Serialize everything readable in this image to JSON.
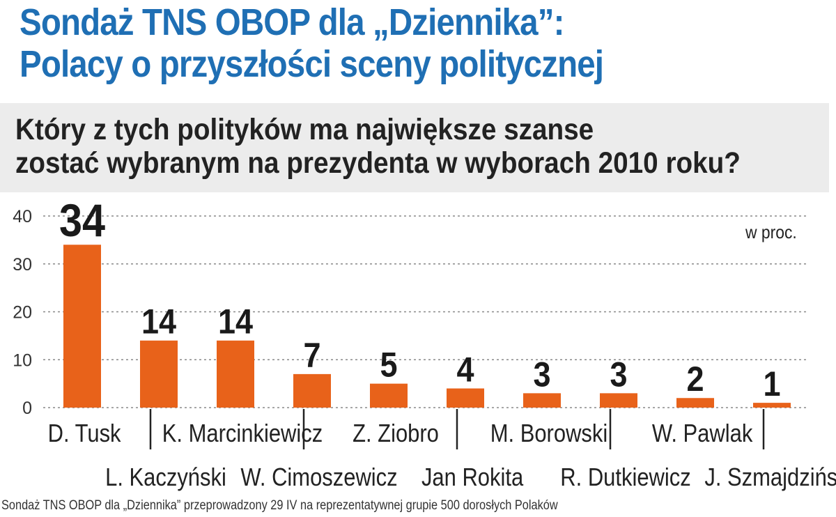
{
  "header": {
    "title_line1": "Sondaż TNS OBOP dla „Dziennika”:",
    "title_line2": "Polacy o przyszłości sceny politycznej",
    "question_line1": "Który z tych polityków ma największe szanse",
    "question_line2": "zostać wybranym na prezydenta w wyborach 2010 roku?",
    "unit": "w proc.",
    "footnote": "Sondaż TNS OBOP dla „Dziennika” przeprowadzony 29 IV na reprezentatywnej grupie 500 dorosłych Polaków"
  },
  "colors": {
    "title": "#1f6fb4",
    "bar": "#e8621a",
    "grid": "#888888"
  },
  "chart_data": {
    "type": "bar",
    "categories": [
      "D. Tusk",
      "L. Kaczyński",
      "K. Marcinkiewicz",
      "W. Cimoszewicz",
      "Z. Ziobro",
      "Jan Rokita",
      "M. Borowski",
      "R. Dutkiewicz",
      "W. Pawlak",
      "J. Szmajdziński"
    ],
    "values": [
      34,
      14,
      14,
      7,
      5,
      4,
      3,
      3,
      2,
      1
    ],
    "value_labels": [
      "34",
      "14",
      "14",
      "7",
      "5",
      "4",
      "3",
      "3",
      "2",
      "1"
    ],
    "yticks": [
      "0",
      "10",
      "20",
      "30",
      "40"
    ],
    "ylim": [
      0,
      40
    ],
    "grid": true,
    "legend": "none"
  }
}
